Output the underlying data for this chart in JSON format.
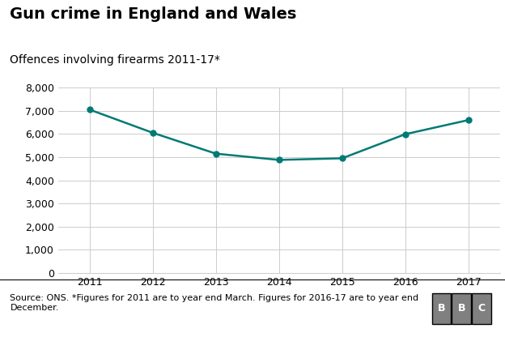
{
  "title": "Gun crime in England and Wales",
  "subtitle": "Offences involving firearms 2011-17*",
  "years": [
    2011,
    2012,
    2013,
    2014,
    2015,
    2016,
    2017
  ],
  "values": [
    7050,
    6050,
    5150,
    4880,
    4950,
    5990,
    6600
  ],
  "line_color": "#007A76",
  "marker_color": "#007A76",
  "bg_color": "#ffffff",
  "plot_bg_color": "#ffffff",
  "grid_color": "#cccccc",
  "ylim": [
    0,
    8000
  ],
  "yticks": [
    0,
    1000,
    2000,
    3000,
    4000,
    5000,
    6000,
    7000,
    8000
  ],
  "footer_text": "Source: ONS. *Figures for 2011 are to year end March. Figures for 2016-17 are to year end\nDecember.",
  "footer_bg": "#e6e6e6",
  "footer_line_color": "#000000",
  "bbc_text": "BBC",
  "bbc_box_color": "#808080",
  "title_fontsize": 14,
  "subtitle_fontsize": 10,
  "tick_fontsize": 9,
  "footer_fontsize": 8
}
